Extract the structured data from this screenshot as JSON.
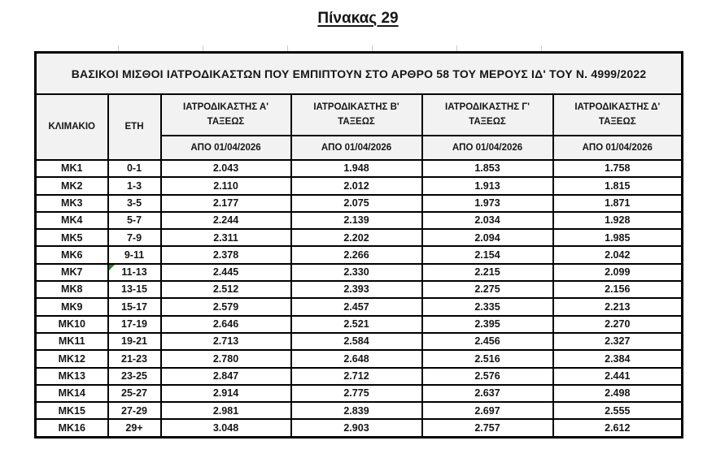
{
  "page": {
    "title": "Πίνακας 29"
  },
  "table": {
    "banner": "ΒΑΣΙΚΟΙ ΜΙΣΘΟΙ ΙΑΤΡΟΔΙΚΑΣΤΩΝ ΠΟΥ ΕΜΠΙΠΤΟΥΝ ΣΤΟ ΑΡΘΡΟ 58 ΤΟΥ ΜΕΡΟΥΣ ΙΔ' ΤΟΥ Ν. 4999/2022",
    "columns": {
      "klimakio": "ΚΛΙΜΑΚΙΟ",
      "eti": "ΕΤΗ",
      "grades": [
        {
          "title": "ΙΑΤΡΟΔΙΚΑΣΤΗΣ Α' ΤΑΞΕΩΣ",
          "date": "ΑΠΟ 01/04/2026"
        },
        {
          "title": "ΙΑΤΡΟΔΙΚΑΣΤΗΣ Β' ΤΑΞΕΩΣ",
          "date": "ΑΠΟ 01/04/2026"
        },
        {
          "title": "ΙΑΤΡΟΔΙΚΑΣΤΗΣ Γ' ΤΑΞΕΩΣ",
          "date": "ΑΠΟ 01/04/2026"
        },
        {
          "title": "ΙΑΤΡΟΔΙΚΑΣΤΗΣ Δ' ΤΑΞΕΩΣ",
          "date": "ΑΠΟ 01/04/2026"
        }
      ]
    },
    "rows": [
      {
        "klimakio": "MK1",
        "eti": "0-1",
        "values": [
          "2.043",
          "1.948",
          "1.853",
          "1.758"
        ],
        "marker": false
      },
      {
        "klimakio": "MK2",
        "eti": "1-3",
        "values": [
          "2.110",
          "2.012",
          "1.913",
          "1.815"
        ],
        "marker": false
      },
      {
        "klimakio": "MK3",
        "eti": "3-5",
        "values": [
          "2.177",
          "2.075",
          "1.973",
          "1.871"
        ],
        "marker": false
      },
      {
        "klimakio": "MK4",
        "eti": "5-7",
        "values": [
          "2.244",
          "2.139",
          "2.034",
          "1.928"
        ],
        "marker": false
      },
      {
        "klimakio": "MK5",
        "eti": "7-9",
        "values": [
          "2.311",
          "2.202",
          "2.094",
          "1.985"
        ],
        "marker": false
      },
      {
        "klimakio": "MK6",
        "eti": "9-11",
        "values": [
          "2.378",
          "2.266",
          "2.154",
          "2.042"
        ],
        "marker": false
      },
      {
        "klimakio": "MK7",
        "eti": "11-13",
        "values": [
          "2.445",
          "2.330",
          "2.215",
          "2.099"
        ],
        "marker": true
      },
      {
        "klimakio": "MK8",
        "eti": "13-15",
        "values": [
          "2.512",
          "2.393",
          "2.275",
          "2.156"
        ],
        "marker": false
      },
      {
        "klimakio": "MK9",
        "eti": "15-17",
        "values": [
          "2.579",
          "2.457",
          "2.335",
          "2.213"
        ],
        "marker": false
      },
      {
        "klimakio": "MK10",
        "eti": "17-19",
        "values": [
          "2.646",
          "2.521",
          "2.395",
          "2.270"
        ],
        "marker": false
      },
      {
        "klimakio": "MK11",
        "eti": "19-21",
        "values": [
          "2.713",
          "2.584",
          "2.456",
          "2.327"
        ],
        "marker": false
      },
      {
        "klimakio": "MK12",
        "eti": "21-23",
        "values": [
          "2.780",
          "2.648",
          "2.516",
          "2.384"
        ],
        "marker": false
      },
      {
        "klimakio": "MK13",
        "eti": "23-25",
        "values": [
          "2.847",
          "2.712",
          "2.576",
          "2.441"
        ],
        "marker": false
      },
      {
        "klimakio": "MK14",
        "eti": "25-27",
        "values": [
          "2.914",
          "2.775",
          "2.637",
          "2.498"
        ],
        "marker": false
      },
      {
        "klimakio": "MK15",
        "eti": "27-29",
        "values": [
          "2.981",
          "2.839",
          "2.697",
          "2.555"
        ],
        "marker": false
      },
      {
        "klimakio": "MK16",
        "eti": "29+",
        "values": [
          "3.048",
          "2.903",
          "2.757",
          "2.612"
        ],
        "marker": false
      }
    ],
    "colors": {
      "border": "#000000",
      "header_bg": "#f2f2f2",
      "text": "#161616",
      "error_marker_green": "#1f8b24"
    }
  }
}
